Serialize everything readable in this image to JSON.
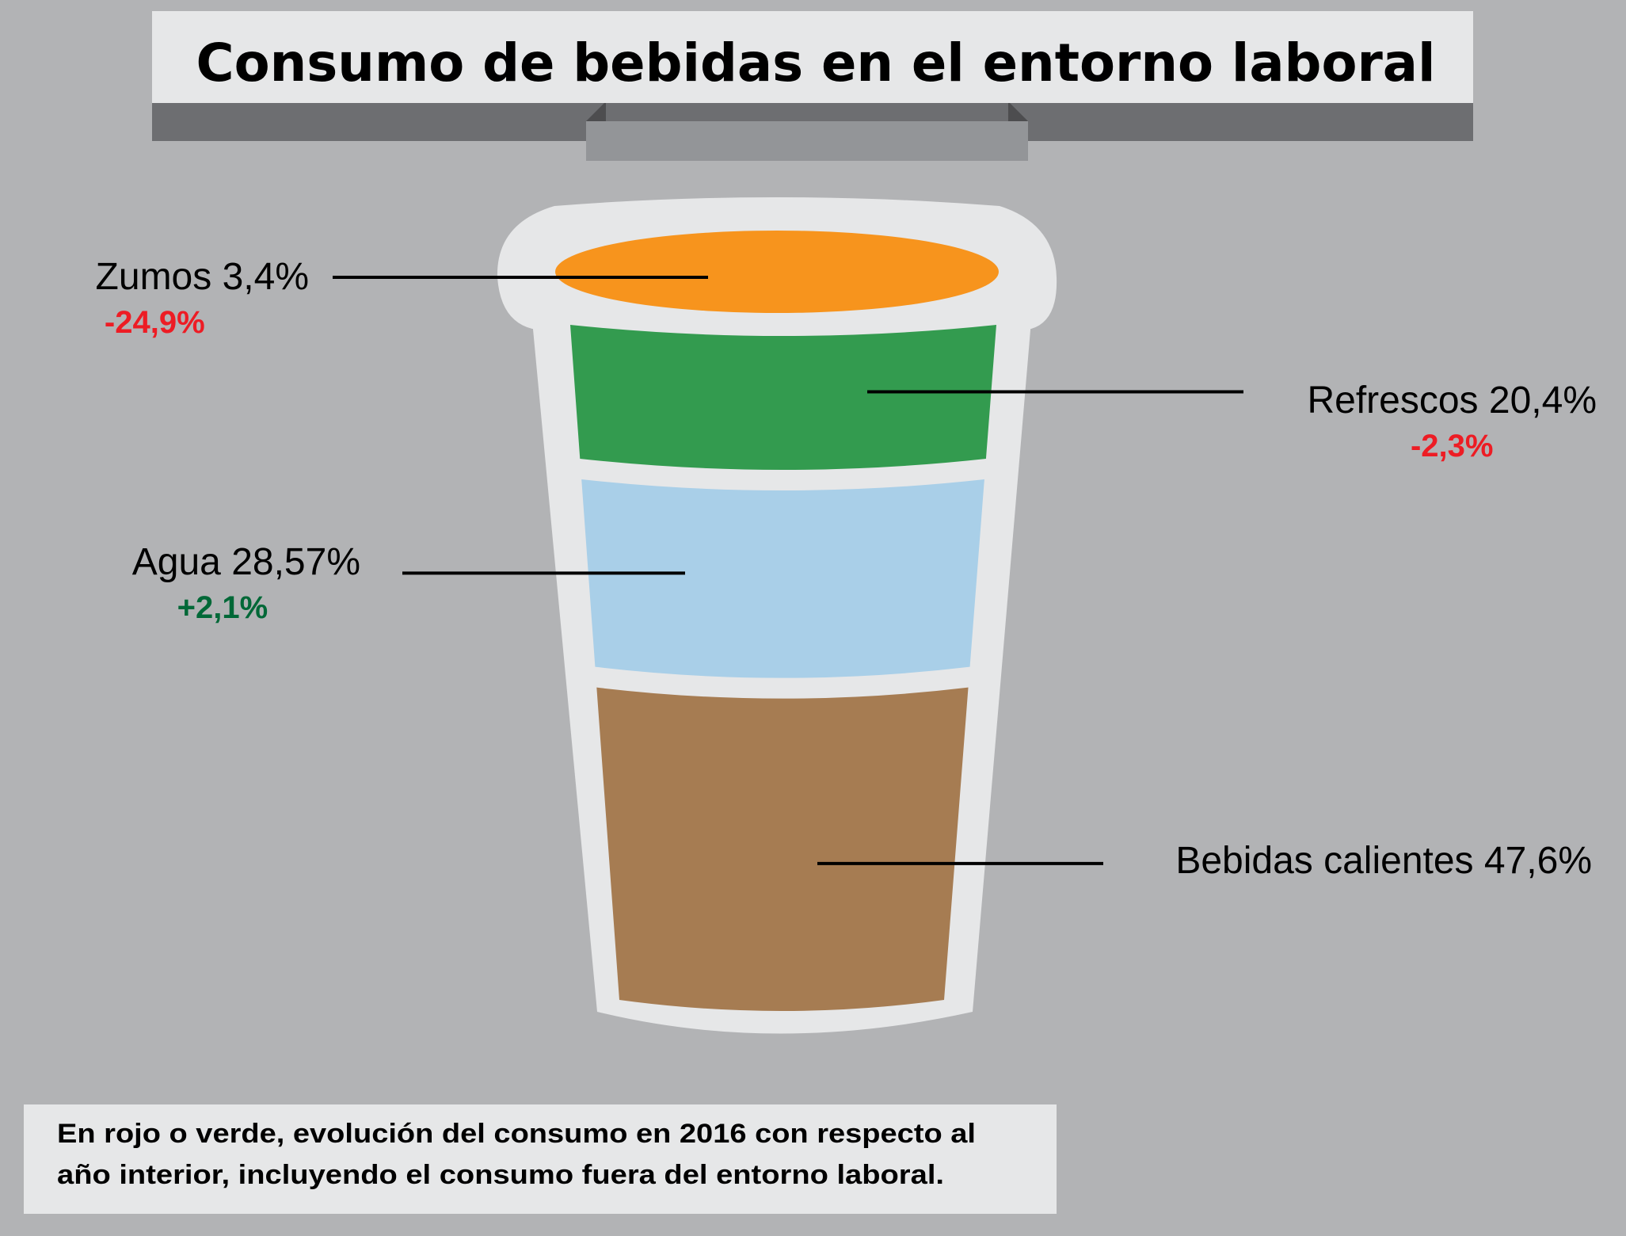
{
  "chart_data": {
    "type": "bar",
    "title": "Consumo de bebidas en el entorno laboral",
    "categories": [
      "Zumos",
      "Refrescos",
      "Agua",
      "Bebidas calientes"
    ],
    "value_labels": [
      "3,4%",
      "20,4%",
      "28,57%",
      "47,6%"
    ],
    "values": [
      3.4,
      20.4,
      28.57,
      47.6
    ],
    "change_labels": [
      "-24,9%",
      "-2,3%",
      "+2,1%",
      ""
    ],
    "changes": [
      -24.9,
      -2.3,
      2.1,
      null
    ],
    "colors": [
      "#f7941d",
      "#339b4f",
      "#a9cfe8",
      "#a67c52"
    ],
    "change_colors": {
      "negative": "#ed1c24",
      "positive": "#006837"
    },
    "note": [
      "En rojo o verde, evolución del consumo en 2016 con respecto al",
      "año interior, incluyendo el consumo fuera del entorno laboral."
    ]
  }
}
